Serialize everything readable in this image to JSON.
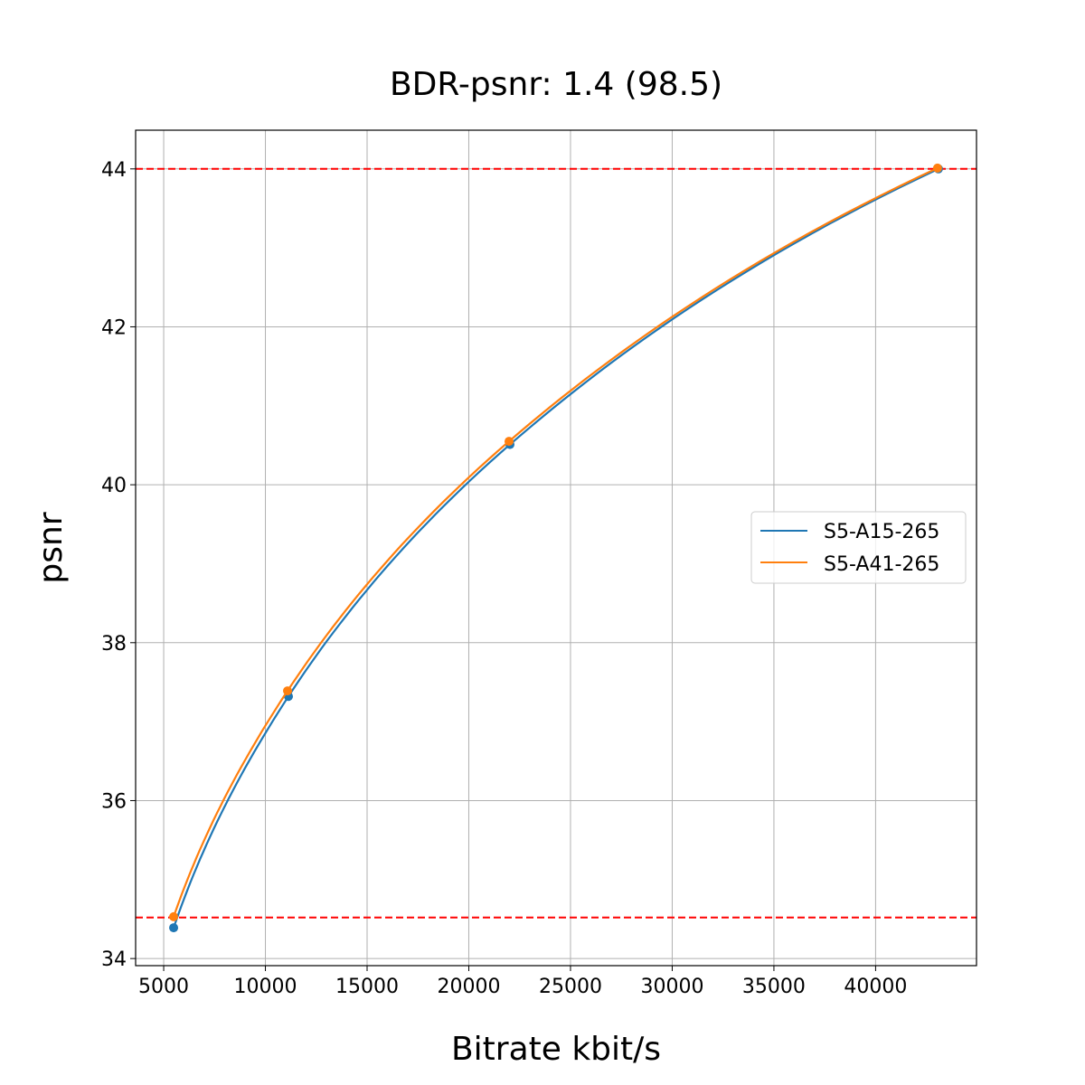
{
  "chart_data": {
    "type": "line",
    "title": "BDR-psnr: 1.4 (98.5)",
    "xlabel": "Bitrate kbit/s",
    "ylabel": "psnr",
    "xlim": [
      3620,
      44960
    ],
    "ylim": [
      33.91,
      44.49
    ],
    "xticks": [
      5000,
      10000,
      15000,
      20000,
      25000,
      30000,
      35000,
      40000
    ],
    "yticks": [
      34,
      36,
      38,
      40,
      42,
      44
    ],
    "grid": true,
    "legend_position": "center-right",
    "series": [
      {
        "name": "S5-A15-265",
        "color": "#1f77b4",
        "x": [
          5489,
          11133,
          22022,
          43089
        ],
        "y": [
          34.39,
          37.32,
          40.51,
          44.0
        ]
      },
      {
        "name": "S5-A41-265",
        "color": "#ff7f0e",
        "x": [
          5489,
          11089,
          21978,
          43044
        ],
        "y": [
          34.53,
          37.39,
          40.55,
          44.01
        ]
      }
    ],
    "reference_lines": [
      {
        "orientation": "horizontal",
        "y": 44.0,
        "color": "#ff0000",
        "style": "dashed"
      },
      {
        "orientation": "horizontal",
        "y": 34.52,
        "color": "#ff0000",
        "style": "dashed"
      }
    ]
  }
}
